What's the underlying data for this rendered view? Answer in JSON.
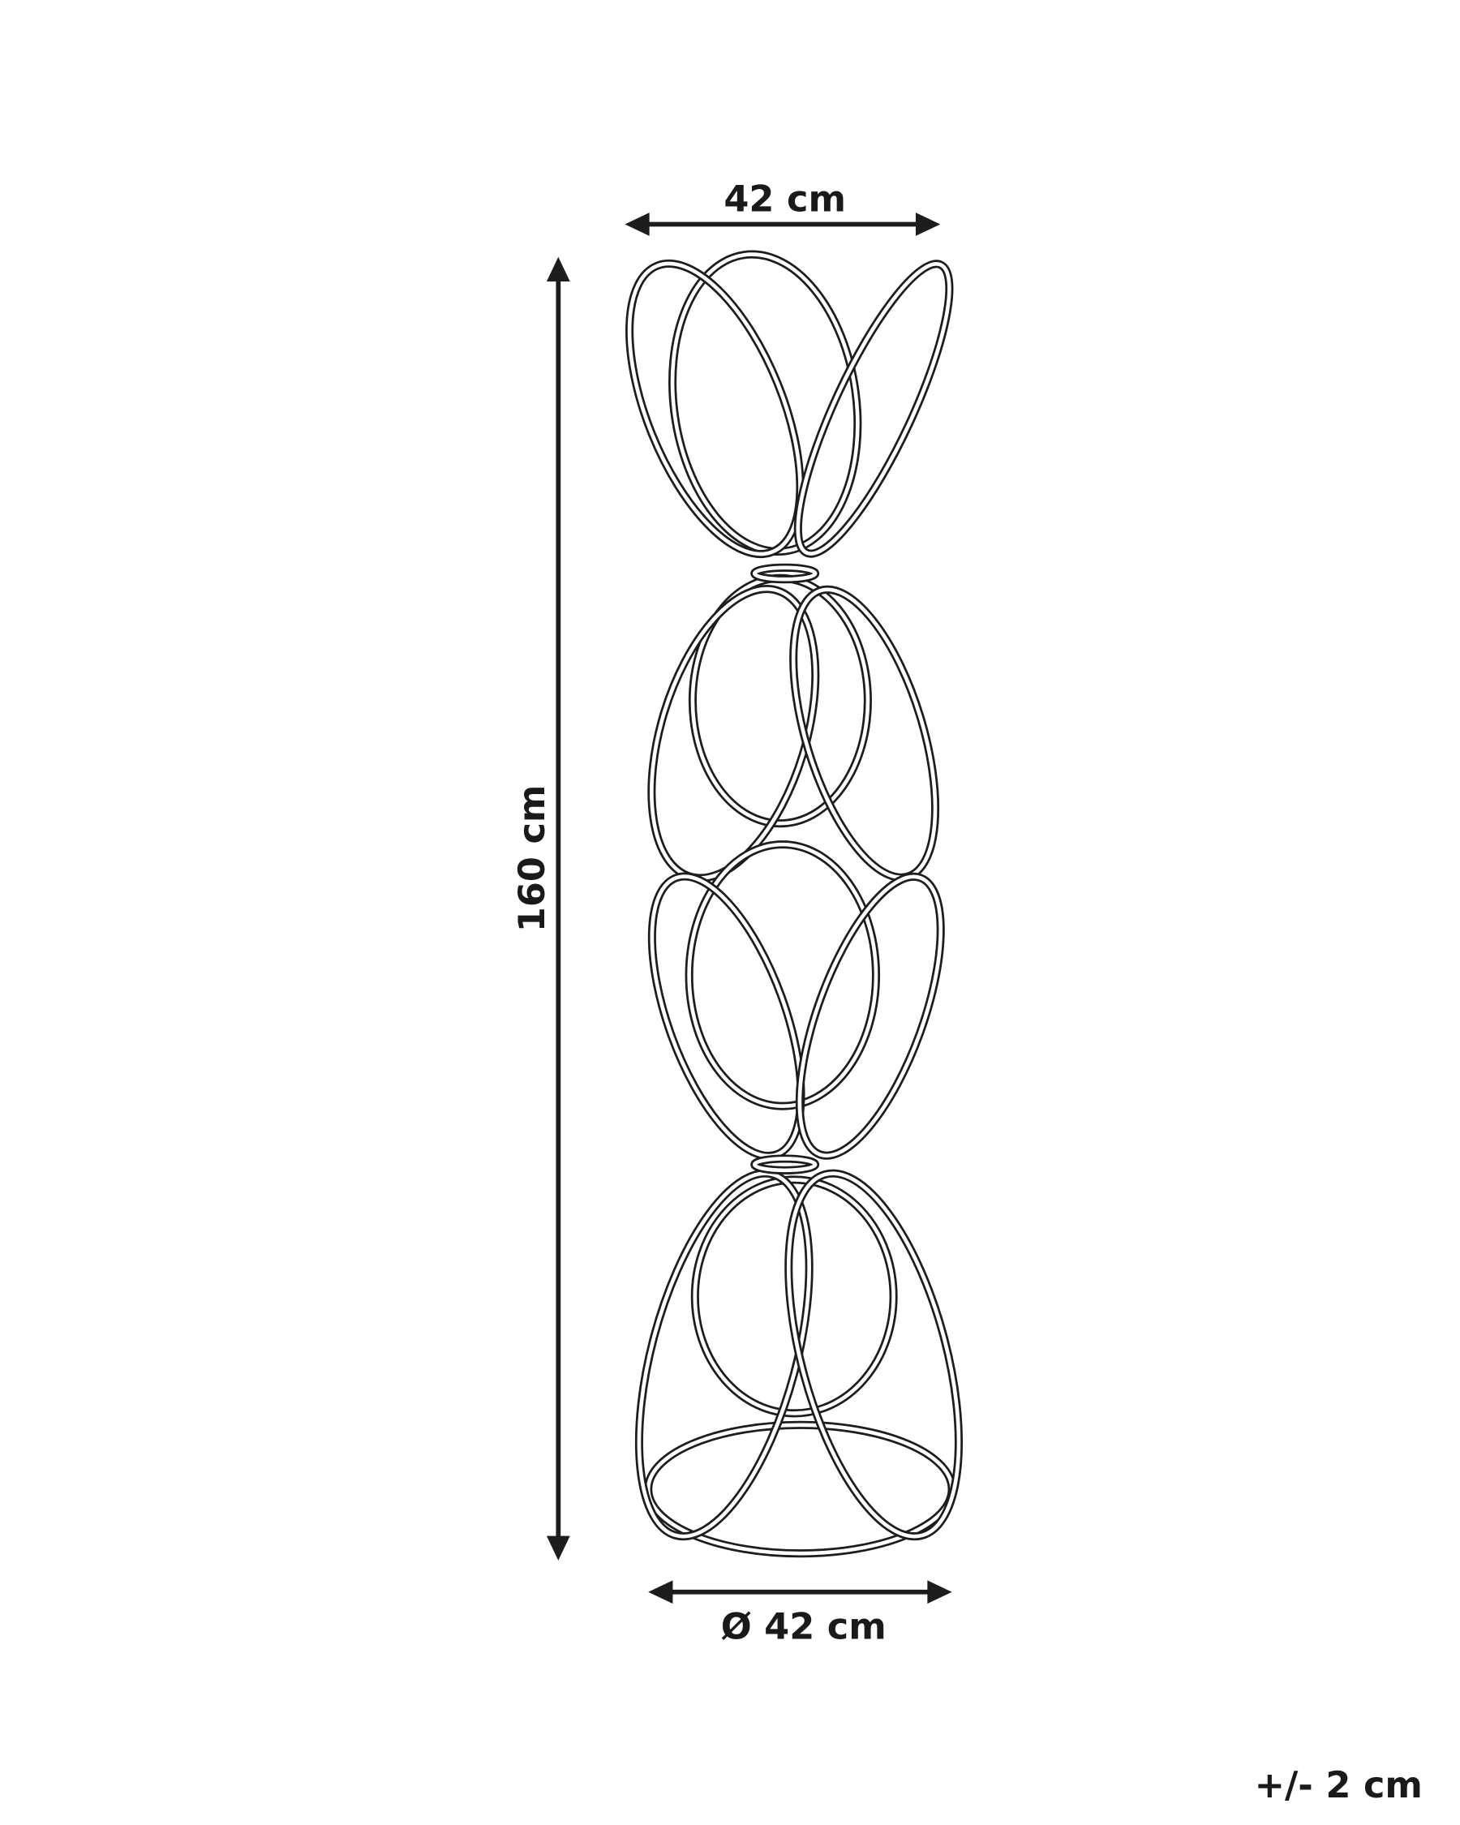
{
  "dimensions": {
    "width_label": "42 cm",
    "height_label": "160 cm",
    "diameter_label": "Ø 42 cm",
    "tolerance_label": "+/- 2 cm"
  },
  "colors": {
    "line": "#1d1d1b",
    "background": "#ffffff"
  }
}
